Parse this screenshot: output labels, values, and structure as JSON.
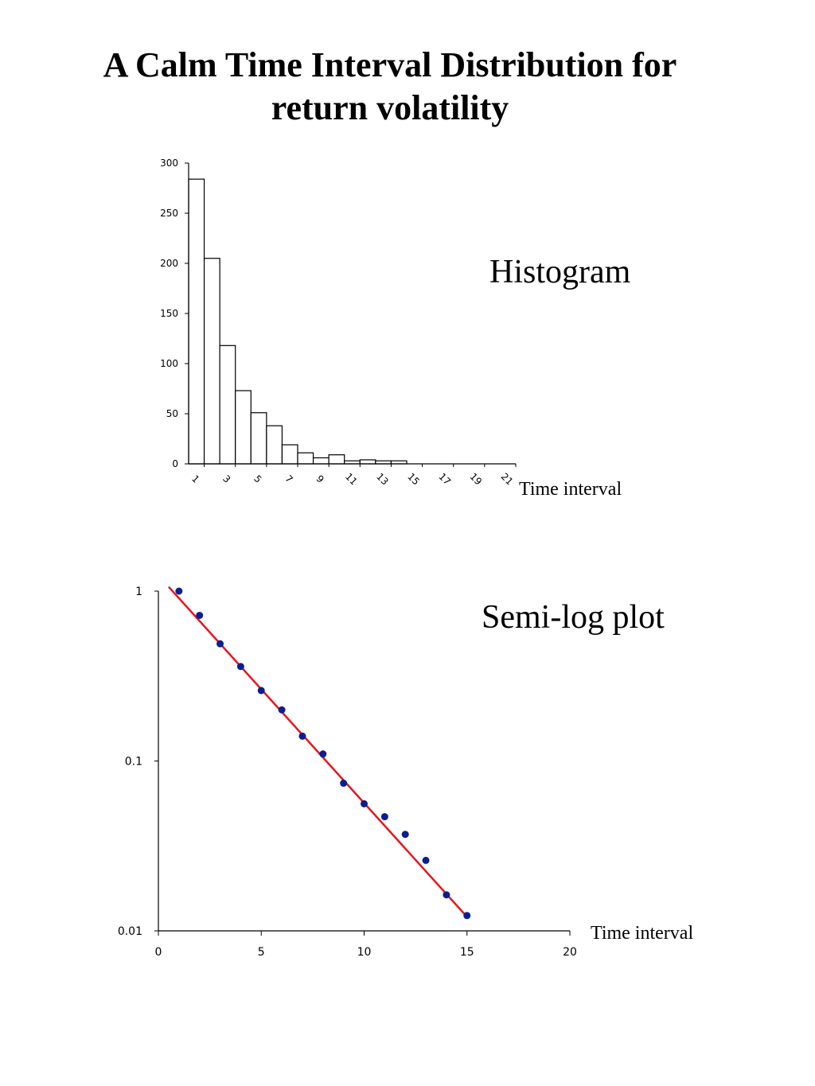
{
  "title": {
    "line1": "A Calm Time Interval Distribution for",
    "line2": "return volatility"
  },
  "chart_data": [
    {
      "type": "bar",
      "label": "Histogram",
      "xlabel": "Time interval",
      "ylim": [
        0,
        300
      ],
      "yticks": [
        0,
        50,
        100,
        150,
        200,
        250,
        300
      ],
      "categories": [
        1,
        2,
        3,
        4,
        5,
        6,
        7,
        8,
        9,
        10,
        11,
        12,
        13,
        14,
        15,
        16,
        17,
        18,
        19,
        20,
        21
      ],
      "xtick_labels": [
        "1",
        "3",
        "5",
        "7",
        "9",
        "11",
        "13",
        "15",
        "17",
        "19",
        "21"
      ],
      "values": [
        284,
        205,
        118,
        73,
        51,
        38,
        19,
        11,
        6,
        9,
        3,
        4,
        3,
        3,
        0,
        0,
        0,
        0,
        0,
        0,
        0
      ],
      "bar_fill": "#ffffff",
      "bar_stroke": "#000000"
    },
    {
      "type": "scatter",
      "label": "Semi-log plot",
      "xlabel": "Time interval",
      "xlim": [
        0,
        20
      ],
      "ylim": [
        0.01,
        1
      ],
      "yscale": "log",
      "xticks": [
        0,
        5,
        10,
        15,
        20
      ],
      "yticks": [
        0.01,
        0.1,
        1
      ],
      "ytick_labels": [
        "0.01",
        "0.1",
        "1"
      ],
      "points": {
        "x": [
          1,
          2,
          3,
          4,
          5,
          6,
          7,
          8,
          9,
          10,
          11,
          12,
          13,
          14,
          15
        ],
        "y": [
          1.0,
          0.72,
          0.49,
          0.36,
          0.26,
          0.2,
          0.14,
          0.11,
          0.074,
          0.056,
          0.047,
          0.037,
          0.026,
          0.0163,
          0.0123
        ]
      },
      "fit_line": {
        "x": [
          0.5,
          15
        ],
        "y": [
          1.06,
          0.0121
        ]
      },
      "point_color": "#0a1f8f",
      "line_color": "#e8151b"
    }
  ]
}
